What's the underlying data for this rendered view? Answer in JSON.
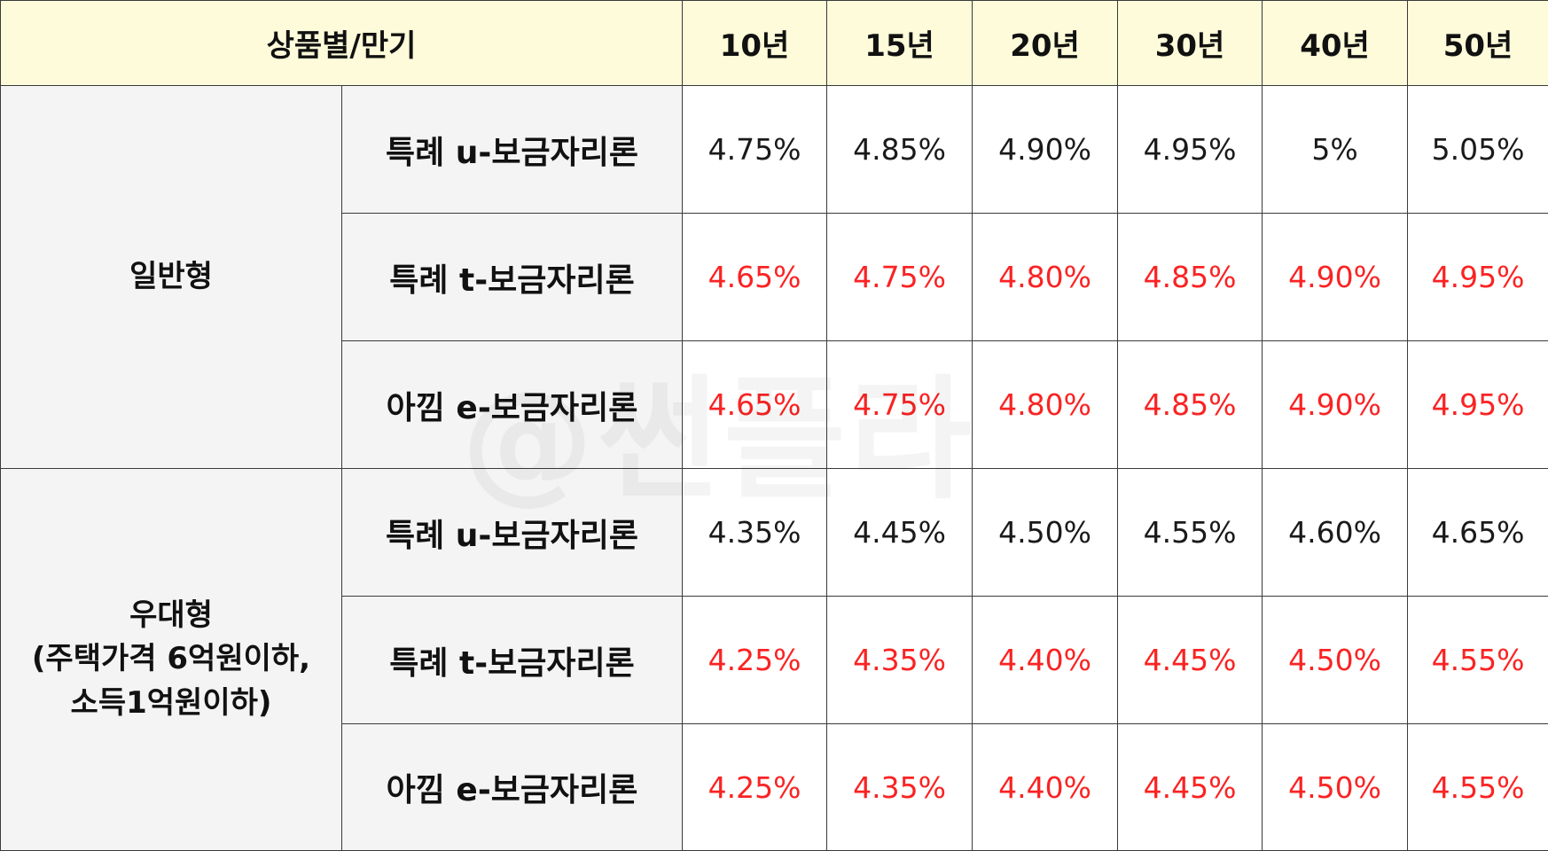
{
  "table": {
    "header_label": "상품별/만기",
    "columns": [
      "10년",
      "15년",
      "20년",
      "30년",
      "40년",
      "50년"
    ],
    "groups": [
      {
        "label_lines": [
          "일반형"
        ],
        "rows": [
          {
            "product": "특례 u-보금자리론",
            "rates": [
              "4.75%",
              "4.85%",
              "4.90%",
              "4.95%",
              "5%",
              "5.05%"
            ],
            "color": "#1a1a1a"
          },
          {
            "product": "특례 t-보금자리론",
            "rates": [
              "4.65%",
              "4.75%",
              "4.80%",
              "4.85%",
              "4.90%",
              "4.95%"
            ],
            "color": "#fa2323"
          },
          {
            "product": "아낌 e-보금자리론",
            "rates": [
              "4.65%",
              "4.75%",
              "4.80%",
              "4.85%",
              "4.90%",
              "4.95%"
            ],
            "color": "#fa2323"
          }
        ]
      },
      {
        "label_lines": [
          "우대형",
          "(주택가격 6억원이하,",
          "소득1억원이하)"
        ],
        "rows": [
          {
            "product": "특례 u-보금자리론",
            "rates": [
              "4.35%",
              "4.45%",
              "4.50%",
              "4.55%",
              "4.60%",
              "4.65%"
            ],
            "color": "#1a1a1a"
          },
          {
            "product": "특례 t-보금자리론",
            "rates": [
              "4.25%",
              "4.35%",
              "4.40%",
              "4.45%",
              "4.50%",
              "4.55%"
            ],
            "color": "#fa2323"
          },
          {
            "product": "아낌 e-보금자리론",
            "rates": [
              "4.25%",
              "4.35%",
              "4.40%",
              "4.45%",
              "4.50%",
              "4.55%"
            ],
            "color": "#fa2323"
          }
        ]
      }
    ]
  },
  "watermark": "@썬플라"
}
